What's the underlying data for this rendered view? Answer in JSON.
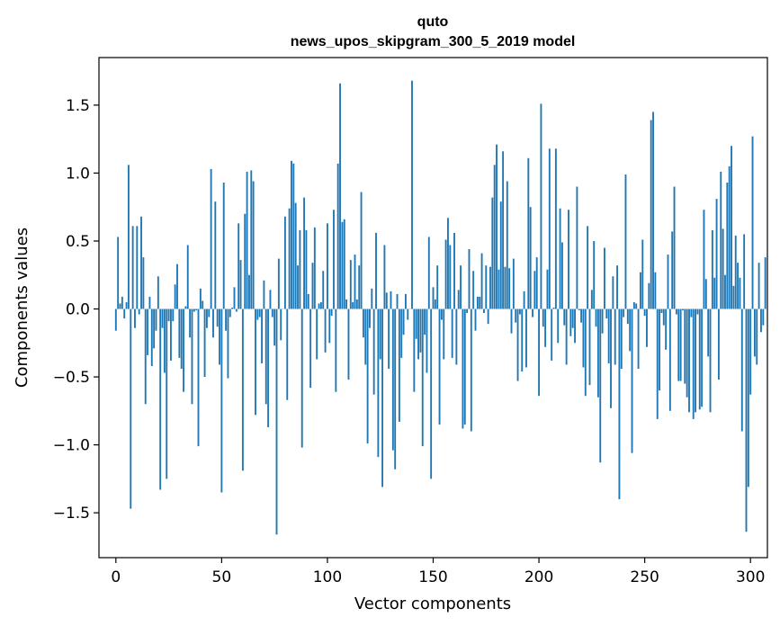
{
  "chart_data": {
    "type": "bar",
    "title": "quto",
    "subtitle": "news_upos_skipgram_300_5_2019 model",
    "xlabel": "Vector components",
    "ylabel": "Components values",
    "xlim": [
      -8,
      308
    ],
    "ylim": [
      -1.83,
      1.85
    ],
    "x_ticks": [
      0,
      50,
      100,
      150,
      200,
      250,
      300
    ],
    "y_ticks": [
      -1.5,
      -1.0,
      -0.5,
      0.0,
      0.5,
      1.0,
      1.5
    ],
    "x_tick_labels": [
      "0",
      "50",
      "100",
      "150",
      "200",
      "250",
      "300"
    ],
    "y_tick_labels": [
      "−1.5",
      "−1.0",
      "−0.5",
      "0.0",
      "0.5",
      "1.0",
      "1.5"
    ],
    "grid": false,
    "bar_color": "#1f77b4",
    "values": [
      -0.16,
      0.53,
      0.04,
      0.09,
      -0.07,
      0.05,
      1.06,
      -1.47,
      0.61,
      -0.14,
      0.61,
      -0.04,
      0.68,
      0.38,
      -0.7,
      -0.34,
      0.09,
      -0.42,
      -0.29,
      -0.16,
      0.24,
      -1.33,
      -0.14,
      -0.47,
      -1.25,
      -0.09,
      -0.38,
      -0.09,
      0.18,
      0.33,
      -0.36,
      -0.44,
      -0.61,
      0.02,
      0.47,
      -0.21,
      -0.7,
      -0.02,
      -0.01,
      -1.01,
      0.15,
      0.06,
      -0.5,
      -0.14,
      -0.06,
      1.03,
      -0.21,
      0.79,
      -0.13,
      -0.41,
      -1.35,
      0.93,
      -0.16,
      -0.51,
      -0.06,
      0.01,
      0.16,
      -0.02,
      0.63,
      0.36,
      -1.19,
      0.7,
      1.01,
      0.25,
      1.02,
      0.94,
      -0.78,
      -0.08,
      -0.06,
      -0.4,
      0.21,
      -0.7,
      -0.87,
      0.14,
      -0.06,
      -0.27,
      -1.66,
      0.37,
      -0.23,
      0.0,
      0.68,
      -0.67,
      0.74,
      1.09,
      1.07,
      0.78,
      0.32,
      0.58,
      -1.02,
      0.82,
      0.58,
      0.11,
      -0.58,
      0.34,
      0.6,
      -0.37,
      0.04,
      0.05,
      0.28,
      -0.32,
      0.63,
      -0.25,
      -0.05,
      0.73,
      -0.61,
      1.07,
      1.66,
      0.64,
      0.66,
      0.07,
      -0.52,
      0.36,
      0.05,
      0.4,
      0.07,
      0.32,
      0.86,
      -0.21,
      -0.41,
      -0.99,
      -0.14,
      0.15,
      -0.63,
      0.56,
      -1.09,
      -0.37,
      -1.31,
      0.47,
      0.12,
      -0.44,
      0.13,
      -1.04,
      -1.18,
      0.11,
      -0.83,
      -0.36,
      -0.19,
      0.11,
      -0.08,
      0.0,
      1.68,
      -0.61,
      -0.22,
      -0.37,
      -0.32,
      -1.01,
      -0.19,
      -0.47,
      0.53,
      -1.25,
      0.16,
      0.07,
      0.32,
      -0.85,
      -0.08,
      -0.37,
      0.51,
      0.67,
      0.47,
      -0.36,
      0.56,
      -0.41,
      0.14,
      0.32,
      -0.88,
      -0.85,
      -0.03,
      0.44,
      -0.9,
      0.28,
      -0.16,
      0.09,
      0.09,
      0.41,
      -0.03,
      0.32,
      -0.11,
      0.31,
      0.82,
      1.06,
      1.21,
      0.29,
      0.79,
      1.16,
      0.31,
      0.94,
      0.3,
      -0.18,
      0.37,
      -0.1,
      -0.53,
      -0.04,
      -0.46,
      0.13,
      -0.43,
      1.11,
      0.75,
      -0.06,
      0.28,
      0.38,
      -0.64,
      1.51,
      -0.13,
      -0.28,
      0.29,
      1.18,
      -0.38,
      0.01,
      1.18,
      -0.25,
      0.74,
      0.49,
      -0.12,
      -0.41,
      0.73,
      -0.2,
      -0.14,
      -0.25,
      0.9,
      -0.01,
      -0.1,
      -0.43,
      -0.64,
      0.61,
      -0.56,
      0.14,
      0.5,
      -0.13,
      -0.65,
      -1.13,
      -0.18,
      0.45,
      -0.07,
      -0.4,
      -0.73,
      0.24,
      -0.41,
      0.32,
      -1.4,
      -0.44,
      -0.06,
      0.99,
      -0.11,
      -0.31,
      -1.06,
      0.05,
      0.04,
      -0.44,
      0.27,
      0.51,
      -0.05,
      -0.28,
      0.19,
      1.39,
      1.45,
      0.27,
      -0.81,
      -0.6,
      -0.03,
      -0.12,
      -0.3,
      0.4,
      -0.75,
      0.57,
      0.9,
      -0.04,
      -0.53,
      -0.53,
      -0.01,
      -0.55,
      -0.65,
      -0.76,
      -0.06,
      -0.81,
      -0.76,
      -0.04,
      -0.74,
      -0.72,
      0.73,
      0.22,
      -0.35,
      -0.76,
      0.58,
      0.23,
      0.81,
      -0.52,
      1.01,
      0.59,
      0.25,
      0.93,
      1.05,
      1.2,
      0.17,
      0.54,
      0.34,
      0.23,
      -0.9,
      0.55,
      -1.64,
      -1.31,
      -0.63,
      1.27,
      -0.35,
      -0.41,
      0.34,
      -0.17,
      -0.12,
      0.38
    ]
  }
}
